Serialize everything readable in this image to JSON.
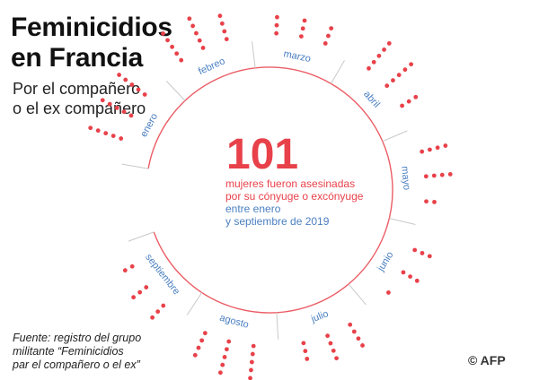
{
  "header": {
    "title_line1": "Feminicidios",
    "title_line2": "en Francia",
    "subtitle_line1": "Por el compañero",
    "subtitle_line2": "o el ex compañero"
  },
  "center": {
    "number": "101",
    "line1": "mujeres fueron asesinadas",
    "line2": "por su cónyuge o excónyuge",
    "line3": "entre enero",
    "line4": "y septiembre de 2019"
  },
  "footer": {
    "source_line1": "Fuente: registro del grupo",
    "source_line2": "militante “Feminicidios",
    "source_line3": "par el compañero o el ex”",
    "credit": "© AFP"
  },
  "colors": {
    "accent": "#e8414a",
    "month_label": "#4a7fc0",
    "axis": "#c9c9c9"
  },
  "chart_data": {
    "type": "radial-dot",
    "unit": "one dot per killing",
    "total": 101,
    "categories": [
      "enero",
      "febreo",
      "marzo",
      "abril",
      "mayo",
      "junio",
      "julio",
      "agosto",
      "septiembre"
    ],
    "values": [
      15,
      14,
      9,
      13,
      10,
      7,
      11,
      14,
      8
    ]
  }
}
